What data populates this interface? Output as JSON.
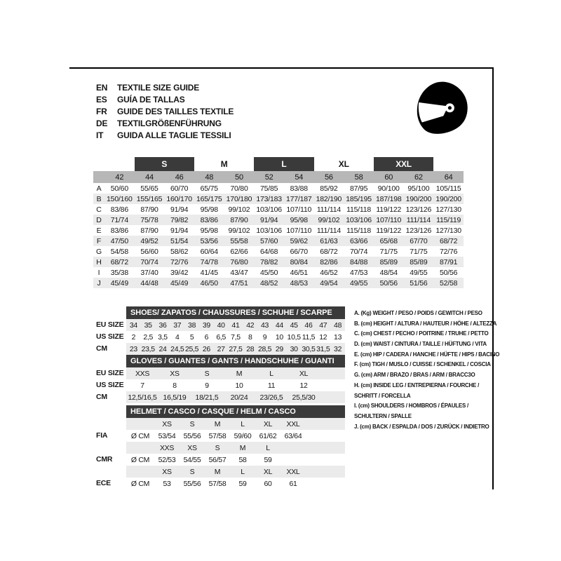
{
  "colors": {
    "dark_bar": "#3a3a3a",
    "header_row_gray": "#b7b7b7",
    "alt_row_gray": "#ebebeb",
    "text": "#161616",
    "band_text_on_dark": "#ffffff"
  },
  "header": {
    "languages": [
      {
        "code": "EN",
        "title": "TEXTILE SIZE GUIDE"
      },
      {
        "code": "ES",
        "title": "GUÍA DE TALLAS"
      },
      {
        "code": "FR",
        "title": "GUIDE DES TAILLES TEXTILE"
      },
      {
        "code": "DE",
        "title": "TEXTILGRÖßENFÜHRUNG"
      },
      {
        "code": "IT",
        "title": "GUIDA ALLE TAGLIE TESSILI"
      }
    ],
    "helmet_icon": "full-face-helmet-icon"
  },
  "textile_table": {
    "size_bands": [
      {
        "label": "S",
        "dark": true
      },
      {
        "label": "M",
        "dark": false
      },
      {
        "label": "L",
        "dark": true
      },
      {
        "label": "XL",
        "dark": false
      },
      {
        "label": "XXL",
        "dark": true
      }
    ],
    "columns": [
      "42",
      "44",
      "46",
      "48",
      "50",
      "52",
      "54",
      "56",
      "58",
      "60",
      "62",
      "64"
    ],
    "rows": [
      {
        "label": "A",
        "values": [
          "50/60",
          "55/65",
          "60/70",
          "65/75",
          "70/80",
          "75/85",
          "83/88",
          "85/92",
          "87/95",
          "90/100",
          "95/100",
          "105/115"
        ]
      },
      {
        "label": "B",
        "values": [
          "150/160",
          "155/165",
          "160/170",
          "165/175",
          "170/180",
          "173/183",
          "177/187",
          "182/190",
          "185/195",
          "187/198",
          "190/200",
          "190/200"
        ]
      },
      {
        "label": "C",
        "values": [
          "83/86",
          "87/90",
          "91/94",
          "95/98",
          "99/102",
          "103/106",
          "107/110",
          "111/114",
          "115/118",
          "119/122",
          "123/126",
          "127/130"
        ]
      },
      {
        "label": "D",
        "values": [
          "71/74",
          "75/78",
          "79/82",
          "83/86",
          "87/90",
          "91/94",
          "95/98",
          "99/102",
          "103/106",
          "107/110",
          "111/114",
          "115/119"
        ]
      },
      {
        "label": "E",
        "values": [
          "83/86",
          "87/90",
          "91/94",
          "95/98",
          "99/102",
          "103/106",
          "107/110",
          "111/114",
          "115/118",
          "119/122",
          "123/126",
          "127/130"
        ]
      },
      {
        "label": "F",
        "values": [
          "47/50",
          "49/52",
          "51/54",
          "53/56",
          "55/58",
          "57/60",
          "59/62",
          "61/63",
          "63/66",
          "65/68",
          "67/70",
          "68/72"
        ]
      },
      {
        "label": "G",
        "values": [
          "54/58",
          "56/60",
          "58/62",
          "60/64",
          "62/66",
          "64/68",
          "66/70",
          "68/72",
          "70/74",
          "71/75",
          "71/75",
          "72/76"
        ]
      },
      {
        "label": "H",
        "values": [
          "68/72",
          "70/74",
          "72/76",
          "74/78",
          "76/80",
          "78/82",
          "80/84",
          "82/86",
          "84/88",
          "85/89",
          "85/89",
          "87/91"
        ]
      },
      {
        "label": "I",
        "values": [
          "35/38",
          "37/40",
          "39/42",
          "41/45",
          "43/47",
          "45/50",
          "46/51",
          "46/52",
          "47/53",
          "48/54",
          "49/55",
          "50/56"
        ]
      },
      {
        "label": "J",
        "values": [
          "45/49",
          "44/48",
          "45/49",
          "46/50",
          "47/51",
          "48/52",
          "48/53",
          "49/54",
          "49/55",
          "50/56",
          "51/56",
          "52/58"
        ]
      }
    ]
  },
  "shoes_table": {
    "title": "SHOES/ ZAPATOS / CHAUSSURES / SCHUHE / SCARPE",
    "rows": [
      {
        "label": "EU SIZE",
        "values": [
          "34",
          "35",
          "36",
          "37",
          "38",
          "39",
          "40",
          "41",
          "42",
          "43",
          "44",
          "45",
          "46",
          "47",
          "48"
        ]
      },
      {
        "label": "US SIZE",
        "values": [
          "2",
          "2,5",
          "3,5",
          "4",
          "5",
          "6",
          "6,5",
          "7,5",
          "8",
          "9",
          "10",
          "10,5",
          "11,5",
          "12",
          "13"
        ]
      },
      {
        "label": "CM",
        "values": [
          "23",
          "23,5",
          "24",
          "24,5",
          "25,5",
          "26",
          "27",
          "27,5",
          "28",
          "28,5",
          "29",
          "30",
          "30,5",
          "31,5",
          "32"
        ]
      }
    ]
  },
  "gloves_table": {
    "title": "GLOVES / GUANTES / GANTS / HANDSCHUHE / GUANTI",
    "rows": [
      {
        "label": "EU SIZE",
        "values": [
          "XXS",
          "XS",
          "S",
          "M",
          "L",
          "XL"
        ]
      },
      {
        "label": "US SIZE",
        "values": [
          "7",
          "8",
          "9",
          "10",
          "11",
          "12"
        ]
      },
      {
        "label": "CM",
        "values": [
          "12,5/16,5",
          "16,5/19",
          "18/21,5",
          "20/24",
          "23/26,5",
          "25,5/30"
        ]
      }
    ]
  },
  "helmet_table": {
    "title": "HELMET / CASCO / CASQUE / HELM / CASCO",
    "diameter_label": "Ø CM",
    "standards": [
      {
        "label": "FIA",
        "sizes": [
          "XS",
          "S",
          "M",
          "L",
          "XL",
          "XXL"
        ],
        "values": [
          "53/54",
          "55/56",
          "57/58",
          "59/60",
          "61/62",
          "63/64"
        ]
      },
      {
        "label": "CMR",
        "sizes": [
          "XXS",
          "XS",
          "S",
          "M",
          "L",
          ""
        ],
        "values": [
          "52/53",
          "54/55",
          "56/57",
          "58",
          "59",
          ""
        ]
      },
      {
        "label": "ECE",
        "sizes": [
          "XS",
          "S",
          "M",
          "L",
          "XL",
          "XXL"
        ],
        "values": [
          "53",
          "55/56",
          "57/58",
          "59",
          "60",
          "61"
        ]
      }
    ]
  },
  "legend": {
    "items": [
      {
        "lines": [
          "A. (Kg) WEIGHT / PESO / POIDS / GEWITCH / PESO"
        ]
      },
      {
        "lines": [
          "B. (cm) HEIGHT / ALTURA / HAUTEUR / HÖHE / ALTEZZA"
        ]
      },
      {
        "lines": [
          "C. (cm) CHEST / PECHO / POITRINE / TRUHE / PETTO"
        ]
      },
      {
        "lines": [
          "D. (cm) WAIST / CINTURA / TAILLE / HÜFTUNG / VITA"
        ]
      },
      {
        "lines": [
          "E. (cm) HIP / CADERA / HANCHE / HÜFTE / HIPS /  BACINO"
        ]
      },
      {
        "lines": [
          "F. (cm) TIGH / MUSLO / CUISSE / SCHENKEL / COSCIA"
        ]
      },
      {
        "lines": [
          "G. (cm) ARM  / BRAZO / BRAS / ARM / BRACC3O"
        ]
      },
      {
        "lines": [
          "H. (cm) INSIDE LEG / ENTREPIERNA / FOURCHE /",
          "SCHRITT / FORCELLA"
        ]
      },
      {
        "lines": [
          "I.  (cm) SHOULDERS / HOMBROS / ÉPAULES /",
          "SCHULTERN / SPALLE"
        ]
      },
      {
        "lines": [
          "J. (cm) BACK / ESPALDA / DOS / ZURÜCK / INDIETRO"
        ]
      }
    ]
  }
}
